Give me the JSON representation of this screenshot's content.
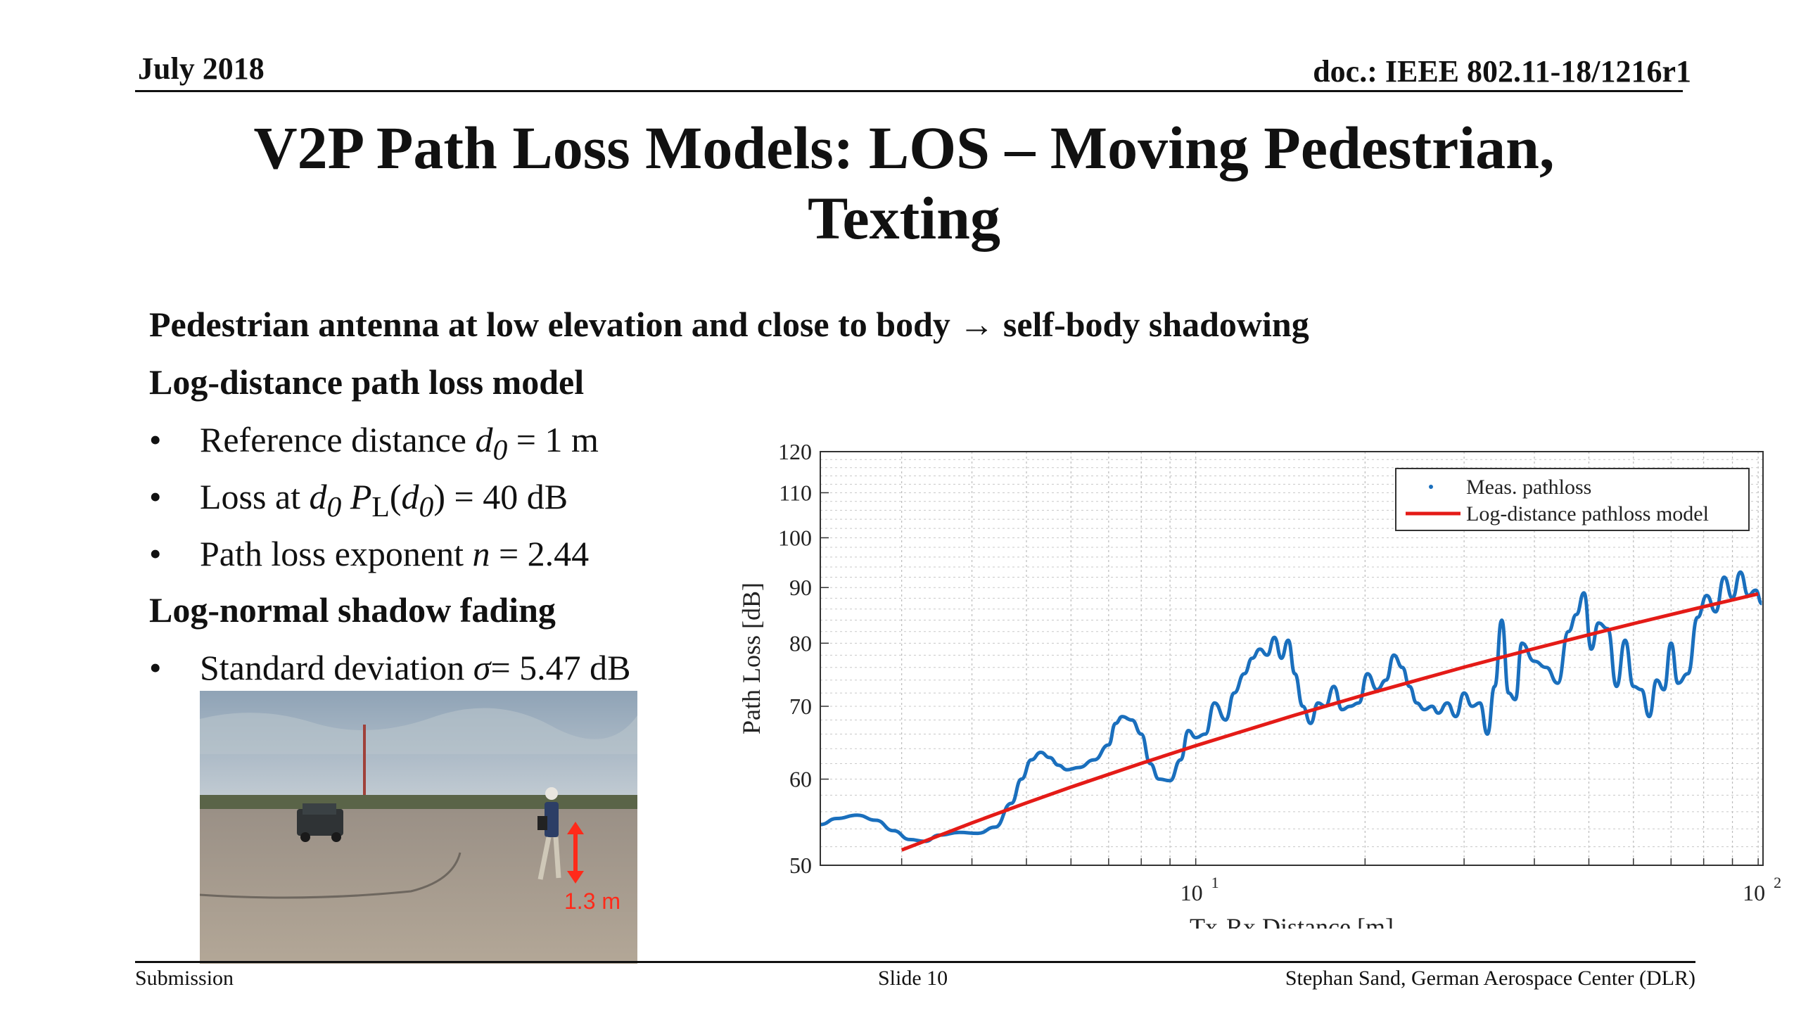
{
  "header": {
    "date": "July 2018",
    "doc": "doc.: IEEE 802.11-18/1216r1"
  },
  "title": {
    "line1": "V2P Path Loss Models: LOS – Moving Pedestrian,",
    "line2": "Texting"
  },
  "lead": "Pedestrian antenna at low elevation and close to body → self-body shadowing",
  "section1": {
    "heading": "Log-distance path loss model",
    "bullets": [
      {
        "prefix": "Reference distance ",
        "sym": "d",
        "sub": "0",
        "suffix": " = 1 m"
      },
      {
        "prefix": "Loss at  ",
        "sym": "d",
        "sub": "0",
        "mid": "  P",
        "mid_sub": "L",
        "mid2": "(",
        "sym2": "d",
        "sub2": "0",
        "suffix": ") = 40 dB"
      },
      {
        "prefix": "Path loss exponent ",
        "sym": "n",
        "suffix": " = 2.44"
      }
    ]
  },
  "section2": {
    "heading": "Log-normal shadow fading",
    "bullets": [
      {
        "prefix": "Standard deviation ",
        "sym": "σ",
        "suffix": "= 5.47 dB"
      }
    ]
  },
  "bullet_glyph": "•",
  "photo": {
    "annotation": "1.3 m",
    "annotation_color": "#ff2a1a"
  },
  "chart_data": {
    "type": "line",
    "title": "",
    "xlabel": "Tx-Rx Distance [m]",
    "ylabel": "Path Loss [dB]",
    "xscale": "log",
    "xlim": [
      2.15,
      102
    ],
    "ylim": [
      50,
      120
    ],
    "yscale": "log",
    "yticks": [
      50,
      60,
      70,
      80,
      90,
      100,
      110,
      120
    ],
    "xticks": [
      {
        "value": 10,
        "base": "10",
        "exp": "1"
      },
      {
        "value": 100,
        "base": "10",
        "exp": "2"
      }
    ],
    "grid": true,
    "legend_position": "top-right",
    "series": [
      {
        "name": "Meas. pathloss",
        "color": "#1a6fbd",
        "x": [
          2.15,
          2.3,
          2.5,
          2.7,
          2.9,
          3.1,
          3.3,
          3.5,
          3.8,
          4.1,
          4.4,
          4.7,
          4.9,
          5.1,
          5.3,
          5.5,
          5.7,
          5.9,
          6.2,
          6.6,
          7.0,
          7.2,
          7.4,
          7.7,
          8.0,
          8.3,
          8.6,
          9.0,
          9.4,
          9.7,
          10.0,
          10.4,
          10.8,
          11.3,
          11.7,
          12.2,
          12.6,
          13.0,
          13.4,
          13.8,
          14.2,
          14.6,
          15.0,
          15.5,
          16.0,
          16.5,
          17.0,
          17.6,
          18.2,
          18.8,
          19.5,
          20.2,
          21.0,
          21.8,
          22.5,
          23.3,
          24.0,
          24.7,
          25.5,
          26.3,
          27.0,
          28.0,
          29.0,
          30.0,
          31.0,
          32.0,
          33.0,
          34.0,
          35.0,
          36.0,
          37.0,
          38.0,
          40.0,
          42.0,
          44.0,
          46.0,
          47.5,
          49.0,
          50.5,
          52.0,
          54.0,
          56.0,
          58.0,
          60.0,
          62.0,
          64.0,
          66.0,
          68.0,
          70.0,
          72.0,
          75.0,
          78.0,
          81.0,
          84.0,
          87.0,
          90.0,
          93.0,
          96.0,
          99.0,
          101.5
        ],
        "y": [
          54.5,
          55.2,
          55.6,
          55.0,
          53.8,
          52.8,
          52.6,
          53.3,
          53.6,
          53.5,
          54.2,
          57.0,
          60.0,
          62.5,
          63.5,
          62.8,
          61.8,
          61.2,
          61.5,
          62.5,
          64.5,
          67.5,
          68.5,
          68.0,
          66.0,
          62.0,
          60.0,
          59.8,
          62.5,
          66.5,
          65.5,
          66.0,
          70.5,
          68.0,
          72.0,
          75.0,
          77.5,
          79.0,
          78.0,
          81.0,
          77.5,
          80.5,
          75.0,
          70.0,
          67.5,
          70.5,
          70.0,
          73.0,
          69.5,
          70.0,
          70.5,
          75.0,
          72.5,
          74.0,
          78.0,
          76.0,
          73.0,
          70.5,
          69.5,
          70.0,
          69.0,
          70.5,
          68.5,
          72.0,
          70.0,
          70.5,
          66.0,
          73.0,
          84.0,
          72.0,
          71.0,
          80.0,
          77.0,
          76.0,
          73.5,
          82.0,
          85.0,
          89.0,
          79.0,
          83.5,
          82.5,
          73.0,
          80.5,
          73.0,
          72.5,
          68.5,
          74.0,
          72.5,
          80.0,
          73.5,
          75.0,
          84.5,
          88.5,
          85.5,
          92.0,
          88.0,
          93.0,
          88.5,
          89.5,
          87.0
        ]
      },
      {
        "name": "Log-distance pathloss model",
        "color": "#e41b17",
        "x": [
          3.0,
          4,
          5,
          6,
          8,
          10,
          15,
          20,
          30,
          40,
          50,
          60,
          80,
          100
        ],
        "y": [
          51.64,
          54.69,
          57.06,
          58.99,
          62.04,
          64.4,
          68.7,
          71.74,
          76.04,
          79.09,
          81.45,
          83.39,
          86.43,
          88.8
        ]
      }
    ]
  },
  "footer": {
    "left": "Submission",
    "mid": "Slide 10",
    "right": "Stephan Sand, German Aerospace Center (DLR)"
  }
}
